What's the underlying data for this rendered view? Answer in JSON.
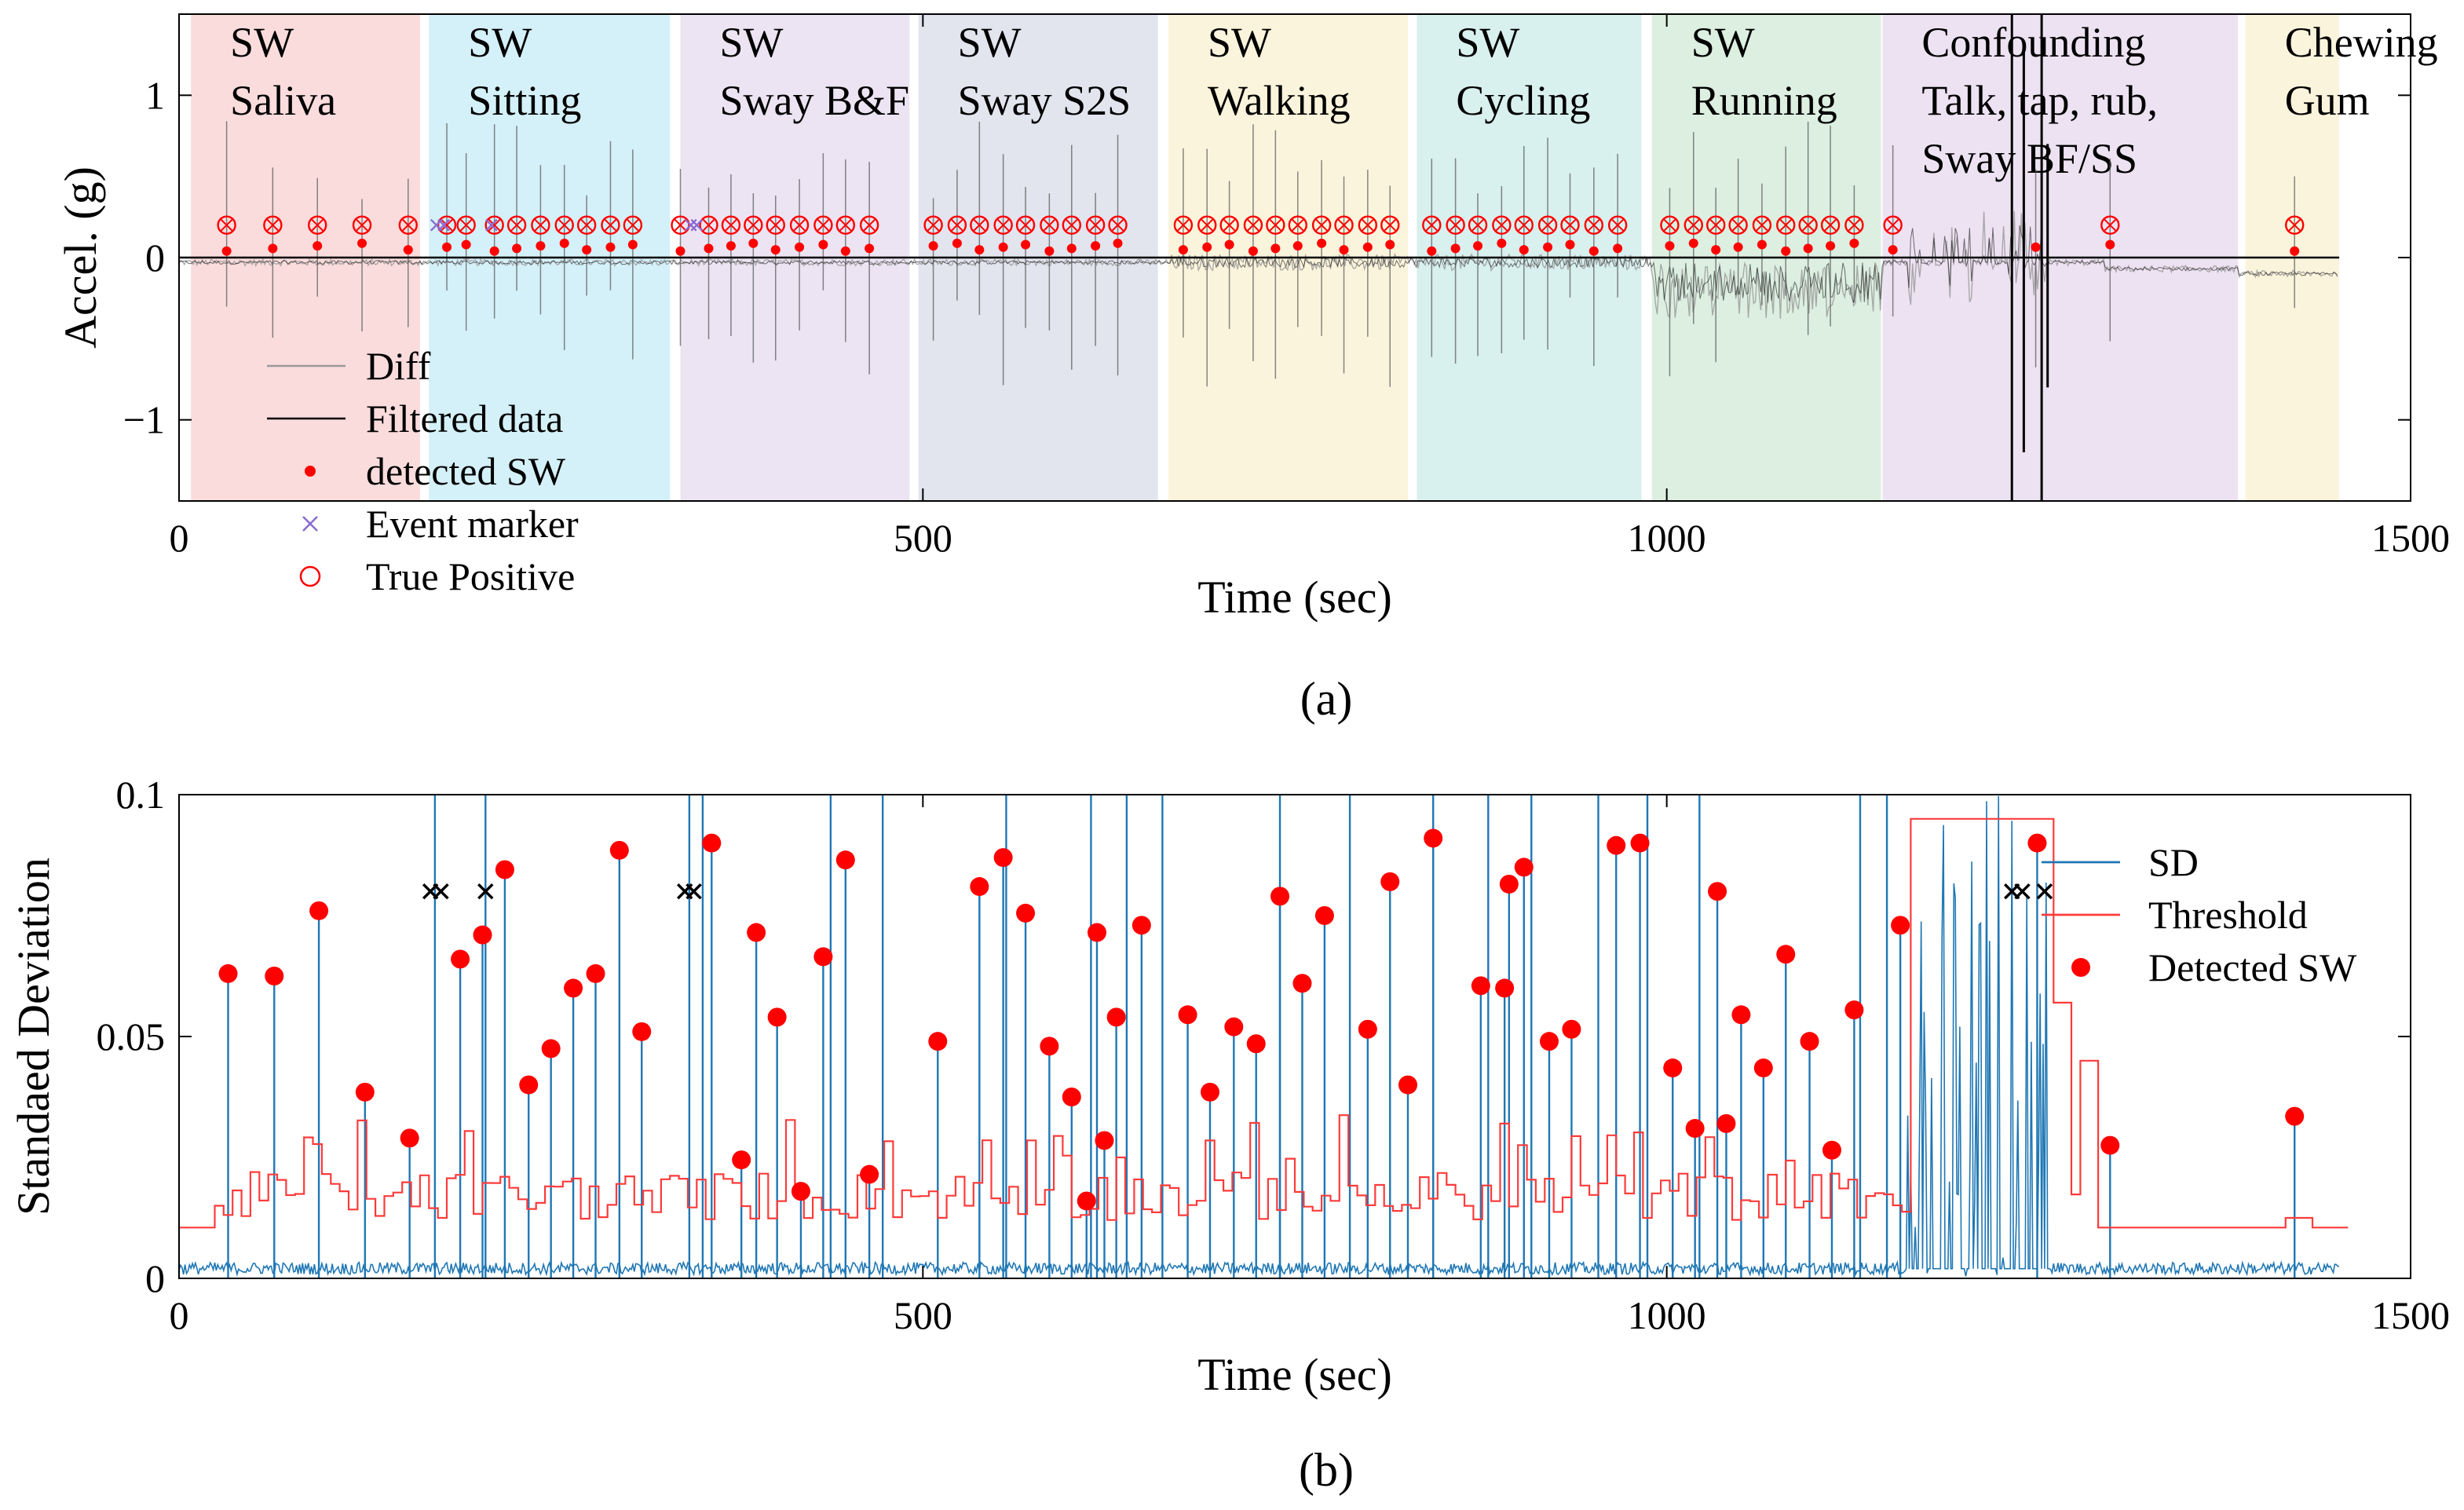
{
  "chart_data": [
    {
      "panel": "a",
      "type": "line",
      "xlabel": "Time (sec)",
      "ylabel": "Accel. (g)",
      "xlim": [
        0,
        1500
      ],
      "ylim": [
        -1.5,
        1.5
      ],
      "xticks": [
        0,
        500,
        1000,
        1500
      ],
      "yticks": [
        -1,
        0,
        1
      ],
      "grid": false,
      "legend_position": "bottom-left",
      "legend": [
        "Diff",
        "Filtered data",
        "detected SW",
        "Event marker",
        "True Positive"
      ],
      "segments": [
        {
          "start": 8,
          "end": 162,
          "line1": "SW",
          "line2": "Saliva",
          "line3": "",
          "color": "#fadcdc",
          "text_color": "#000000"
        },
        {
          "start": 168,
          "end": 330,
          "line1": "SW",
          "line2": "Sitting",
          "line3": "",
          "color": "#d4f0f8",
          "text_color": "#000000"
        },
        {
          "start": 337,
          "end": 491,
          "line1": "SW",
          "line2": "Sway B&F",
          "line3": "",
          "color": "#ece4f2",
          "text_color": "#000000"
        },
        {
          "start": 497,
          "end": 658,
          "line1": "SW",
          "line2": "Sway S2S",
          "line3": "",
          "color": "#e2e4ee",
          "text_color": "#000000"
        },
        {
          "start": 665,
          "end": 826,
          "line1": "SW",
          "line2": "Walking",
          "line3": "",
          "color": "#fbf4dc",
          "text_color": "#000000"
        },
        {
          "start": 832,
          "end": 983,
          "line1": "SW",
          "line2": "Cycling",
          "line3": "",
          "color": "#d8f0ee",
          "text_color": "#000000"
        },
        {
          "start": 990,
          "end": 1144,
          "line1": "SW",
          "line2": "Running",
          "line3": "",
          "color": "#dcefe0",
          "text_color": "#000000"
        },
        {
          "start": 1145,
          "end": 1384,
          "line1": "Confounding",
          "line2": "Talk, tap, rub,",
          "line3": "Sway BF/SS",
          "color": "#ede2f2",
          "text_color": "#7a3aa0"
        },
        {
          "start": 1389,
          "end": 1452,
          "line1": "Chewing",
          "line2": "Gum",
          "line3": "",
          "color": "#fbf4dc",
          "text_color": "#000000"
        }
      ],
      "detected_sw_times": [
        32,
        63,
        93,
        123,
        154,
        180,
        193,
        212,
        227,
        243,
        259,
        274,
        290,
        305,
        337,
        356,
        371,
        386,
        401,
        417,
        433,
        448,
        464,
        507,
        523,
        538,
        554,
        569,
        585,
        600,
        616,
        631,
        675,
        691,
        706,
        722,
        737,
        752,
        768,
        783,
        799,
        814,
        842,
        858,
        873,
        889,
        904,
        920,
        935,
        951,
        967,
        1002,
        1018,
        1033,
        1048,
        1064,
        1080,
        1095,
        1110,
        1126,
        1152,
        1248,
        1298,
        1422
      ],
      "event_marker_times": [
        173,
        178,
        210,
        344,
        348
      ],
      "true_positive_times": [
        32,
        63,
        93,
        123,
        154,
        180,
        193,
        212,
        227,
        243,
        259,
        274,
        290,
        305,
        337,
        356,
        371,
        386,
        401,
        417,
        433,
        448,
        464,
        507,
        523,
        538,
        554,
        569,
        585,
        600,
        616,
        631,
        675,
        691,
        706,
        722,
        737,
        752,
        768,
        783,
        799,
        814,
        842,
        858,
        873,
        889,
        904,
        920,
        935,
        951,
        967,
        1002,
        1018,
        1033,
        1048,
        1064,
        1080,
        1095,
        1110,
        1126,
        1152,
        1298,
        1422
      ]
    },
    {
      "panel": "b",
      "type": "line",
      "xlabel": "Time (sec)",
      "ylabel": "Standaed Deviation",
      "xlim": [
        0,
        1500
      ],
      "ylim": [
        0,
        0.1
      ],
      "xticks": [
        0,
        500,
        1000,
        1500
      ],
      "yticks": [
        0,
        0.05,
        0.1
      ],
      "grid": false,
      "legend_position": "top-right",
      "legend": [
        "SD",
        "Threshold",
        "Detected SW"
      ],
      "detected_sw": [
        {
          "t": 33,
          "v": 0.063
        },
        {
          "t": 64,
          "v": 0.0625
        },
        {
          "t": 94,
          "v": 0.076
        },
        {
          "t": 125,
          "v": 0.0385
        },
        {
          "t": 155,
          "v": 0.029
        },
        {
          "t": 189,
          "v": 0.066
        },
        {
          "t": 204,
          "v": 0.071
        },
        {
          "t": 219,
          "v": 0.0845
        },
        {
          "t": 235,
          "v": 0.04
        },
        {
          "t": 250,
          "v": 0.0475
        },
        {
          "t": 265,
          "v": 0.06
        },
        {
          "t": 280,
          "v": 0.063
        },
        {
          "t": 296,
          "v": 0.0885
        },
        {
          "t": 311,
          "v": 0.051
        },
        {
          "t": 358,
          "v": 0.09
        },
        {
          "t": 378,
          "v": 0.0245
        },
        {
          "t": 388,
          "v": 0.0715
        },
        {
          "t": 402,
          "v": 0.054
        },
        {
          "t": 418,
          "v": 0.018
        },
        {
          "t": 433,
          "v": 0.0665
        },
        {
          "t": 448,
          "v": 0.0865
        },
        {
          "t": 464,
          "v": 0.0215
        },
        {
          "t": 510,
          "v": 0.049
        },
        {
          "t": 538,
          "v": 0.081
        },
        {
          "t": 554,
          "v": 0.087
        },
        {
          "t": 569,
          "v": 0.0755
        },
        {
          "t": 585,
          "v": 0.048
        },
        {
          "t": 600,
          "v": 0.0375
        },
        {
          "t": 610,
          "v": 0.016
        },
        {
          "t": 617,
          "v": 0.0715
        },
        {
          "t": 622,
          "v": 0.0285
        },
        {
          "t": 630,
          "v": 0.054
        },
        {
          "t": 647,
          "v": 0.073
        },
        {
          "t": 678,
          "v": 0.0545
        },
        {
          "t": 693,
          "v": 0.0385
        },
        {
          "t": 709,
          "v": 0.052
        },
        {
          "t": 724,
          "v": 0.0485
        },
        {
          "t": 740,
          "v": 0.079
        },
        {
          "t": 755,
          "v": 0.061
        },
        {
          "t": 770,
          "v": 0.075
        },
        {
          "t": 799,
          "v": 0.0515
        },
        {
          "t": 814,
          "v": 0.082
        },
        {
          "t": 826,
          "v": 0.04
        },
        {
          "t": 843,
          "v": 0.091
        },
        {
          "t": 875,
          "v": 0.0605
        },
        {
          "t": 891,
          "v": 0.06
        },
        {
          "t": 894,
          "v": 0.0815
        },
        {
          "t": 904,
          "v": 0.085
        },
        {
          "t": 921,
          "v": 0.049
        },
        {
          "t": 936,
          "v": 0.0515
        },
        {
          "t": 966,
          "v": 0.0895
        },
        {
          "t": 982,
          "v": 0.09
        },
        {
          "t": 1004,
          "v": 0.0435
        },
        {
          "t": 1019,
          "v": 0.031
        },
        {
          "t": 1034,
          "v": 0.08
        },
        {
          "t": 1040,
          "v": 0.032
        },
        {
          "t": 1050,
          "v": 0.0545
        },
        {
          "t": 1065,
          "v": 0.0435
        },
        {
          "t": 1080,
          "v": 0.067
        },
        {
          "t": 1096,
          "v": 0.049
        },
        {
          "t": 1111,
          "v": 0.0265
        },
        {
          "t": 1126,
          "v": 0.0555
        },
        {
          "t": 1157,
          "v": 0.073
        },
        {
          "t": 1249,
          "v": 0.09
        },
        {
          "t": 1298,
          "v": 0.0275
        },
        {
          "t": 1422,
          "v": 0.0335
        }
      ],
      "event_markers": [
        {
          "t": 169,
          "v": 0.08
        },
        {
          "t": 176,
          "v": 0.08
        },
        {
          "t": 206,
          "v": 0.08
        },
        {
          "t": 340,
          "v": 0.08
        },
        {
          "t": 346,
          "v": 0.08
        },
        {
          "t": 1232,
          "v": 0.08
        },
        {
          "t": 1239,
          "v": 0.08
        },
        {
          "t": 1254,
          "v": 0.08
        }
      ]
    }
  ],
  "panels": {
    "a_label": "(a)",
    "b_label": "(b)"
  },
  "colors": {
    "sd": "#1f77b4",
    "threshold": "#ff3b3b",
    "sw_marker": "#ff0000",
    "event_marker_a": "#8a6bd1",
    "event_marker_b": "#000000",
    "diff": "#999999",
    "filtered": "#000000"
  }
}
